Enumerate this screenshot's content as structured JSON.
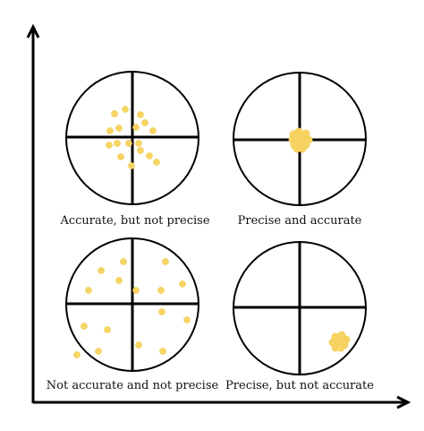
{
  "colors": {
    "dot": "#F7D564",
    "dot_edge": "#F2C94C",
    "line": "#000000",
    "background": "#FFFFFF"
  },
  "panels": {
    "top_left": {
      "caption": "Accurate, but not precise",
      "dots": 17
    },
    "top_right": {
      "caption": "Precise and accurate",
      "dots": 14
    },
    "bottom_left": {
      "caption": "Not accurate and not precise",
      "dots": 16
    },
    "bottom_right": {
      "caption": "Precise, but not accurate",
      "dots": 10
    }
  }
}
